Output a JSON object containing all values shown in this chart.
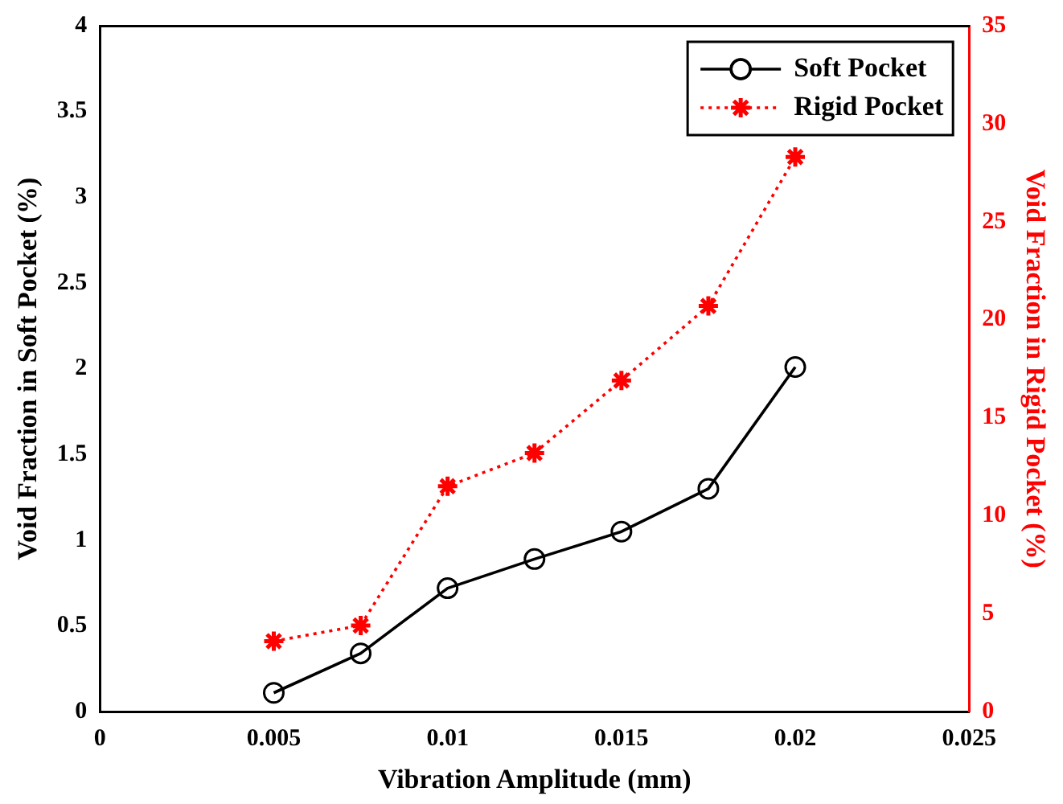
{
  "chart_data": {
    "type": "line",
    "xlabel": "Vibration Amplitude (mm)",
    "ylabel": "Void Fraction in Soft Pocket (%)",
    "y2label": "Void Fraction in Rigid Pocket (%)",
    "x": [
      0.005,
      0.0075,
      0.01,
      0.0125,
      0.015,
      0.0175,
      0.02
    ],
    "xlim": [
      0,
      0.025
    ],
    "xticks": [
      0,
      0.005,
      0.01,
      0.015,
      0.02,
      0.025
    ],
    "ylim": [
      0,
      4
    ],
    "yticks": [
      0,
      0.5,
      1,
      1.5,
      2,
      2.5,
      3,
      3.5,
      4
    ],
    "y2lim": [
      0,
      35
    ],
    "y2ticks": [
      0,
      5,
      10,
      15,
      20,
      25,
      30,
      35
    ],
    "legend": "top right",
    "grid": false,
    "series": [
      {
        "name": "Soft Pocket",
        "color": "#000000",
        "marker": "circle",
        "line_style": "solid",
        "values": [
          0.11,
          0.34,
          0.72,
          0.89,
          1.05,
          1.3,
          2.01
        ]
      },
      {
        "name": "Rigid Pocket",
        "color": "#ff0000",
        "marker": "cross",
        "line_style": "dotted",
        "axis": "y2",
        "values": [
          3.6,
          4.4,
          11.5,
          13.2,
          16.9,
          20.7,
          28.3
        ]
      }
    ]
  }
}
